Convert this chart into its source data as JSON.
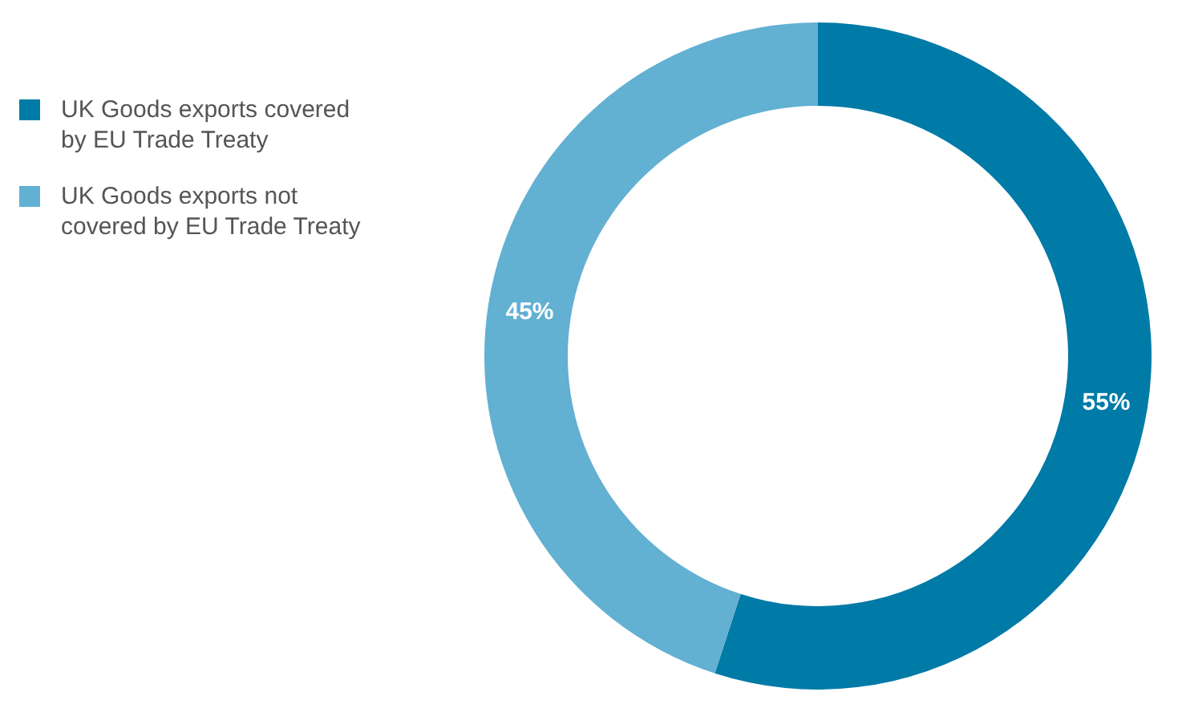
{
  "chart_data": {
    "type": "donut",
    "categories": [
      "UK Goods exports covered by EU Trade Treaty",
      "UK Goods exports not covered by EU Trade Treaty"
    ],
    "values": [
      55,
      45
    ],
    "colors": [
      "#007aa6",
      "#62b0d2"
    ],
    "value_labels": [
      "55%",
      "45%"
    ],
    "legend": "top left"
  }
}
